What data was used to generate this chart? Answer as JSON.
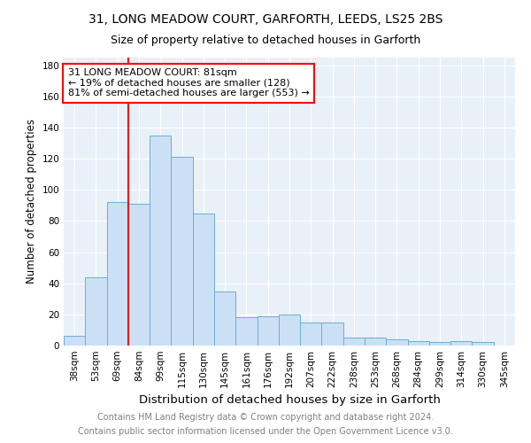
{
  "title1": "31, LONG MEADOW COURT, GARFORTH, LEEDS, LS25 2BS",
  "title2": "Size of property relative to detached houses in Garforth",
  "xlabel": "Distribution of detached houses by size in Garforth",
  "ylabel": "Number of detached properties",
  "footnote1": "Contains HM Land Registry data © Crown copyright and database right 2024.",
  "footnote2": "Contains public sector information licensed under the Open Government Licence v3.0.",
  "categories": [
    "38sqm",
    "53sqm",
    "69sqm",
    "84sqm",
    "99sqm",
    "115sqm",
    "130sqm",
    "145sqm",
    "161sqm",
    "176sqm",
    "192sqm",
    "207sqm",
    "222sqm",
    "238sqm",
    "253sqm",
    "268sqm",
    "284sqm",
    "299sqm",
    "314sqm",
    "330sqm",
    "345sqm"
  ],
  "values": [
    6,
    44,
    92,
    91,
    135,
    121,
    85,
    35,
    18,
    19,
    20,
    15,
    15,
    5,
    5,
    4,
    3,
    2,
    3,
    2,
    0
  ],
  "bar_color": "#cce0f5",
  "bar_edge_color": "#6aaed6",
  "vline_color": "red",
  "annotation_text": "31 LONG MEADOW COURT: 81sqm\n← 19% of detached houses are smaller (128)\n81% of semi-detached houses are larger (553) →",
  "annotation_box_color": "white",
  "annotation_box_edge_color": "red",
  "ylim": [
    0,
    185
  ],
  "yticks": [
    0,
    20,
    40,
    60,
    80,
    100,
    120,
    140,
    160,
    180
  ],
  "background_color": "#e8f0f8",
  "title1_fontsize": 10,
  "title2_fontsize": 9,
  "xlabel_fontsize": 9.5,
  "ylabel_fontsize": 8.5,
  "footnote_fontsize": 7,
  "tick_fontsize": 7.5,
  "annot_fontsize": 8
}
